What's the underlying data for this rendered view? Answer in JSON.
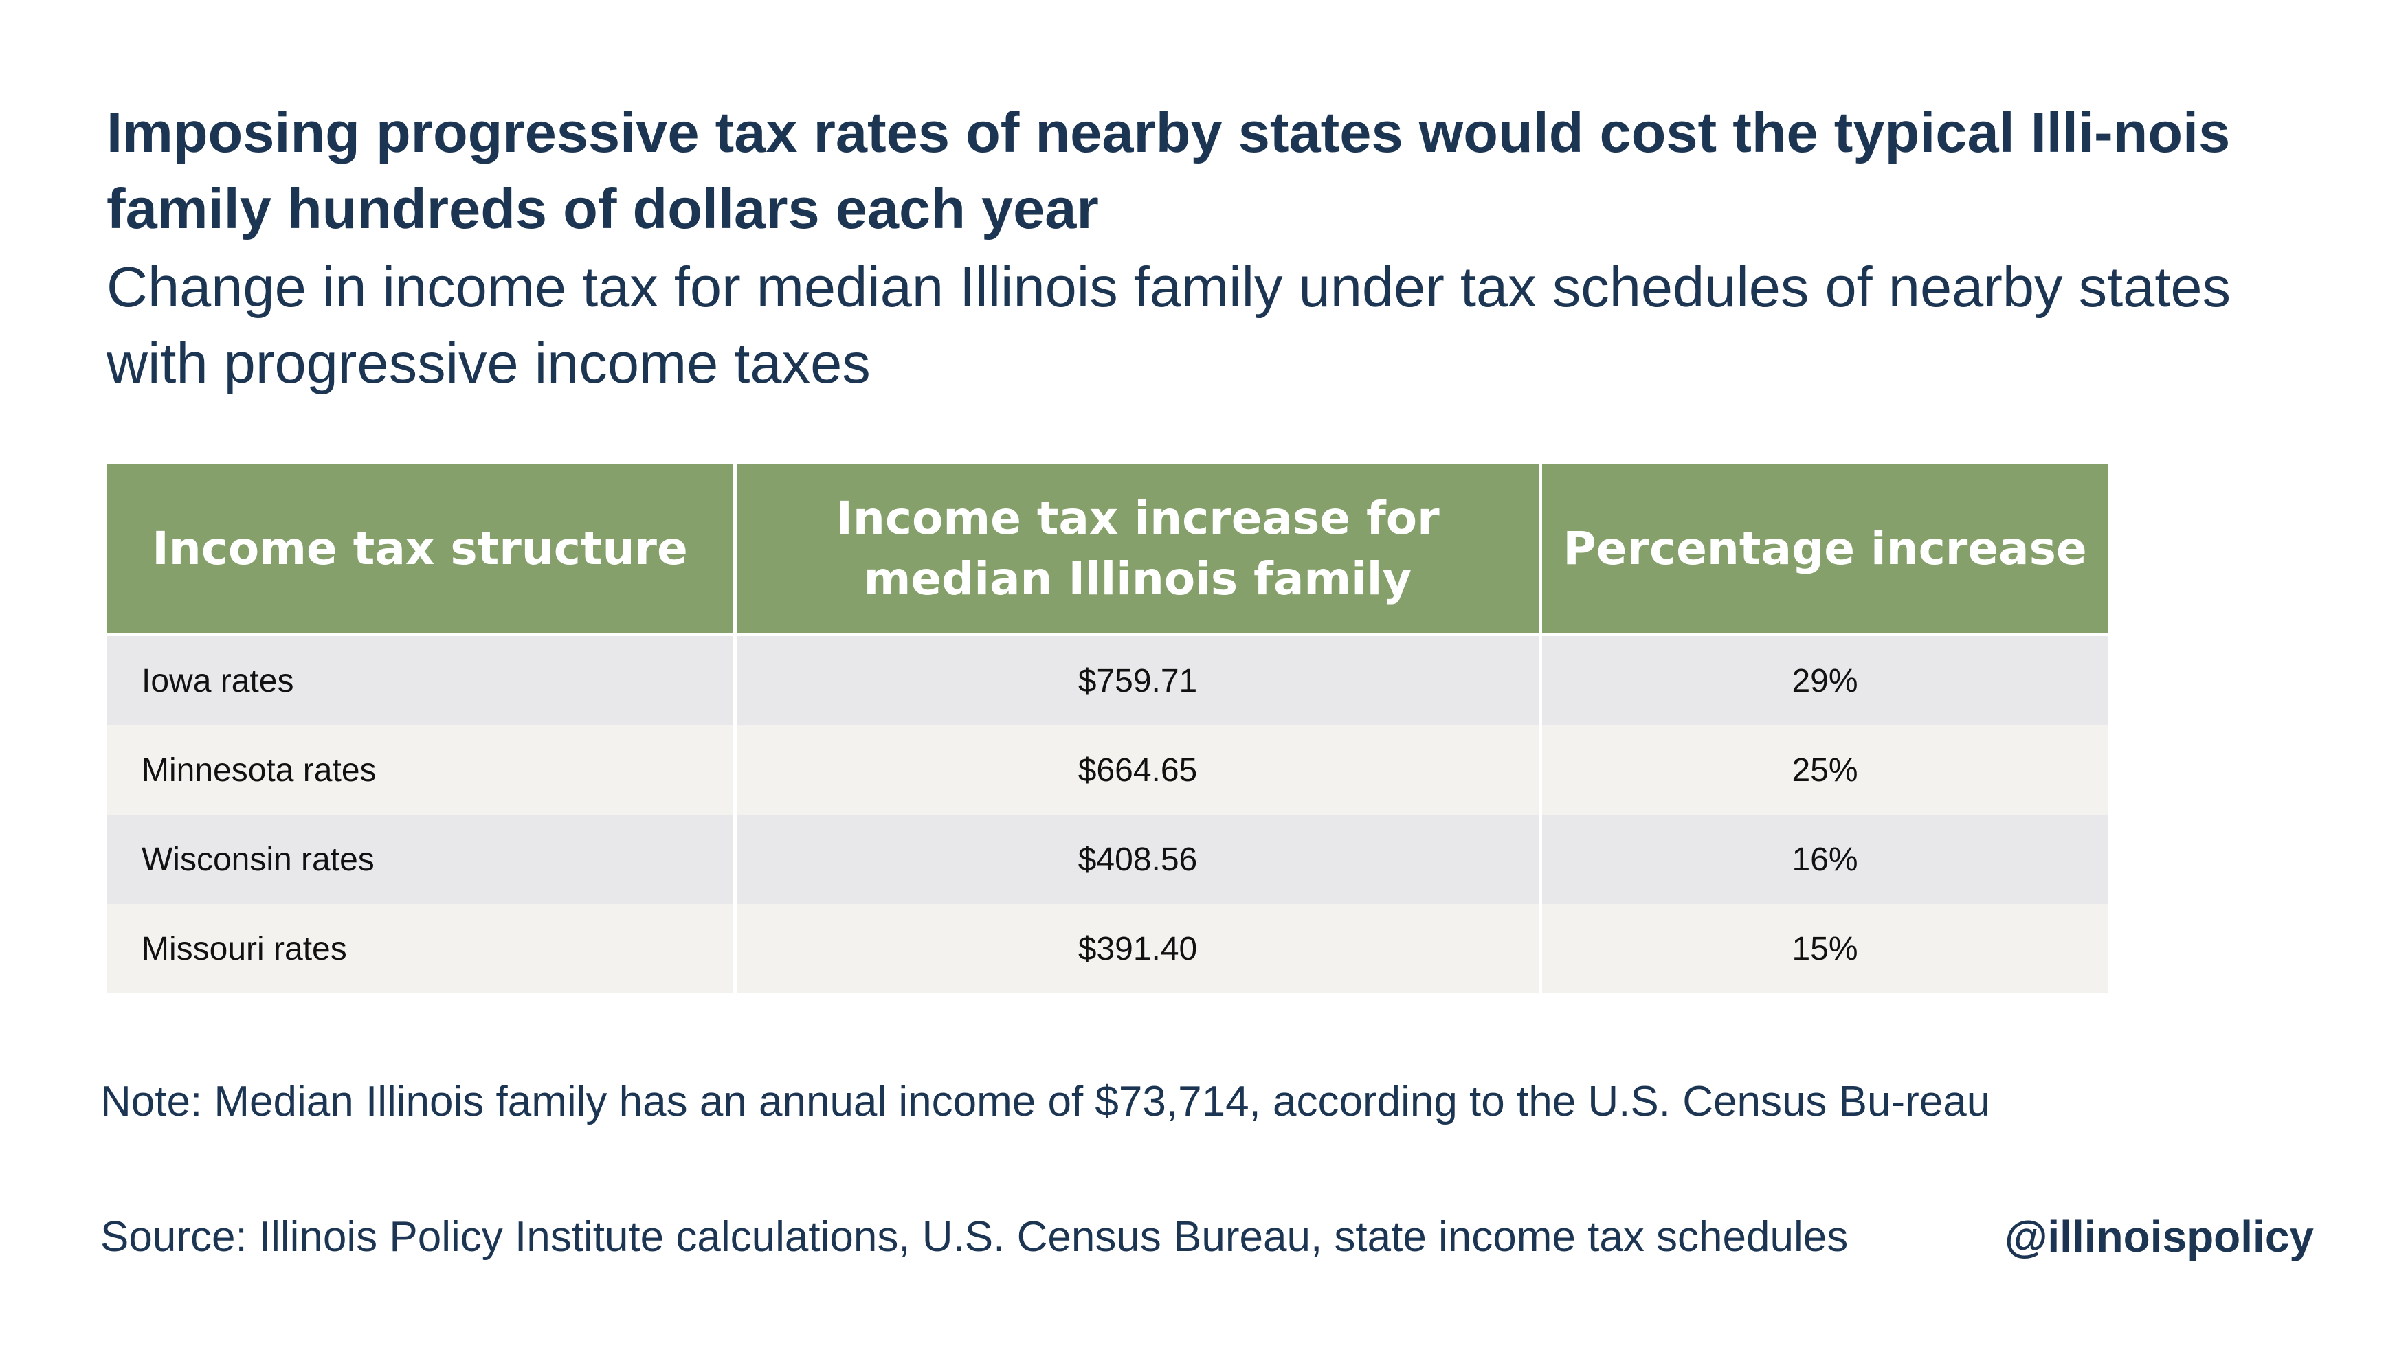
{
  "title": "Imposing progressive tax rates of nearby states would cost the typical Illi-nois family hundreds of dollars each year",
  "subtitle": "Change in income tax for median Illinois family under tax schedules of nearby states with progressive income taxes",
  "chart_data": {
    "type": "table",
    "title": "Imposing progressive tax rates of nearby states would cost the typical Illi-nois family hundreds of dollars each year",
    "subtitle": "Change in income tax for median Illinois family under tax schedules of nearby states with progressive income taxes",
    "columns": [
      "Income tax structure",
      "Income tax increase for median Illinois family",
      "Percentage increase"
    ],
    "rows": [
      [
        "Iowa rates",
        "$759.71",
        "29%"
      ],
      [
        "Minnesota rates",
        "$664.65",
        "25%"
      ],
      [
        "Wisconsin rates",
        "$408.56",
        "16%"
      ],
      [
        "Missouri rates",
        "$391.40",
        "15%"
      ]
    ]
  },
  "note": "Note: Median Illinois family has an annual income of $73,714, according to the U.S. Census Bu-reau",
  "source": "Source: Illinois Policy Institute calculations, U.S. Census Bureau, state income tax schedules",
  "handle": "@illinoispolicy",
  "colors": {
    "header_bg": "#85a06b",
    "row_odd": "#e8e7e9",
    "row_even": "#f4f2ef",
    "text_navy": "#1c3553"
  }
}
